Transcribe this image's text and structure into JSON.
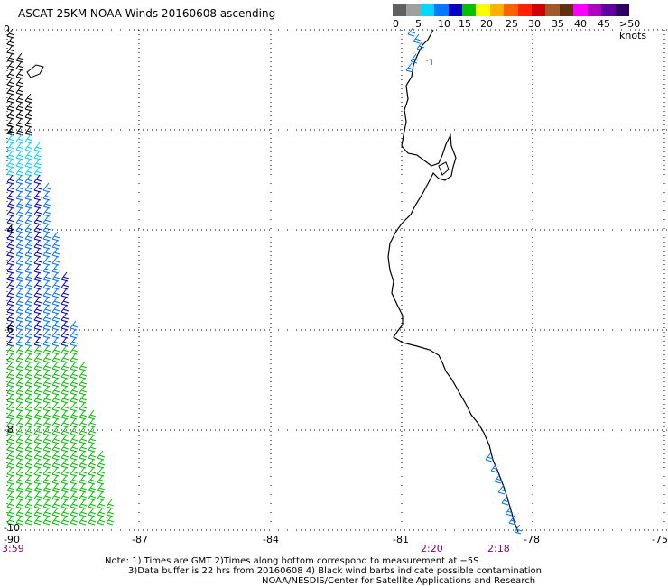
{
  "title": "ASCAT 25KM NOAA Winds 20160608 ascending",
  "legend": {
    "labels": [
      "0",
      "5",
      "10",
      "15",
      "20",
      "25",
      "30",
      "35",
      "40",
      "45",
      ">50 knots"
    ],
    "colors": [
      "#606060",
      "#a0a0a0",
      "#00d8ff",
      "#0078ff",
      "#0000c0",
      "#00c000",
      "#ffff00",
      "#ffb000",
      "#ff6000",
      "#ff2000",
      "#d00000",
      "#a05a28",
      "#603010",
      "#ff00ff",
      "#b000c0",
      "#6000a0",
      "#300060"
    ]
  },
  "axes": {
    "x_ticks": [
      "-90",
      "-87",
      "-84",
      "-81",
      "-78",
      "-75"
    ],
    "y_ticks": [
      "0",
      "-2",
      "-4",
      "-6",
      "-8",
      "-10"
    ]
  },
  "times": {
    "t1": "3:59",
    "t2": "2:20",
    "t3": "2:18"
  },
  "notes": {
    "line1": "Note: 1) Times are GMT 2)Times along bottom correspond to measurement at −5S",
    "line2": "3)Data buffer is 22 hrs from 20160608 4) Black wind barbs indicate possible contamination",
    "line3": "NOAA/NESDIS/Center for Satellite Applications and Research"
  }
}
